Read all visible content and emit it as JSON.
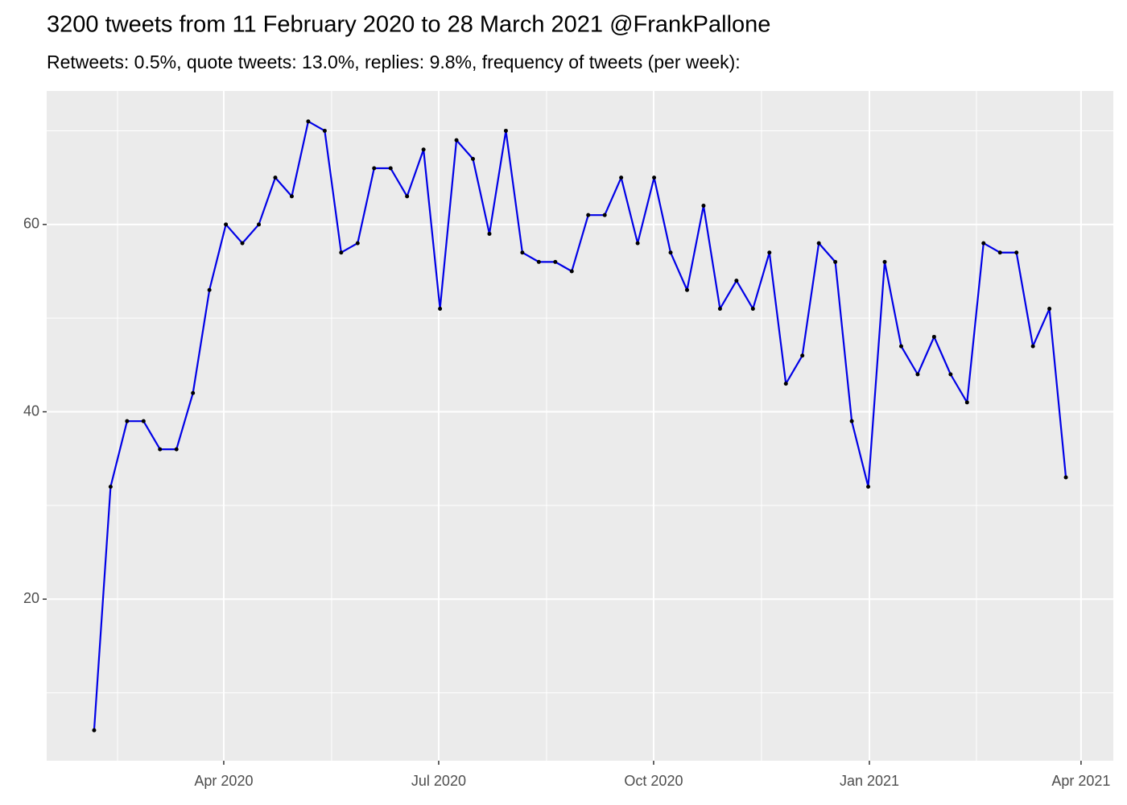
{
  "chart_data": {
    "type": "line",
    "title": "3200 tweets from 11 February 2020 to 28 March 2021 @FrankPallone",
    "subtitle": "Retweets: 0.5%, quote tweets: 13.0%, replies: 9.8%, frequency of tweets (per week):",
    "x": [
      0,
      1,
      2,
      3,
      4,
      5,
      6,
      7,
      8,
      9,
      10,
      11,
      12,
      13,
      14,
      15,
      16,
      17,
      18,
      19,
      20,
      21,
      22,
      23,
      24,
      25,
      26,
      27,
      28,
      29,
      30,
      31,
      32,
      33,
      34,
      35,
      36,
      37,
      38,
      39,
      40,
      41,
      42,
      43,
      44,
      45,
      46,
      47,
      48,
      49,
      50,
      51,
      52,
      53,
      54,
      55,
      56,
      57,
      58,
      59
    ],
    "series": [
      {
        "color": "#0000e6",
        "point_color": "#000000",
        "values": [
          6,
          32,
          39,
          39,
          36,
          36,
          42,
          53,
          60,
          58,
          60,
          65,
          63,
          71,
          70,
          57,
          58,
          66,
          66,
          63,
          68,
          51,
          69,
          67,
          59,
          70,
          57,
          56,
          56,
          55,
          61,
          61,
          65,
          58,
          65,
          57,
          53,
          62,
          51,
          54,
          51,
          57,
          43,
          46,
          58,
          56,
          39,
          32,
          56,
          47,
          44,
          48,
          44,
          41,
          58,
          57,
          57,
          47,
          51,
          33
        ]
      }
    ],
    "xlim": [
      -2.88,
      61.88
    ],
    "xticks": [
      {
        "value": 7.87,
        "label": "Apr 2020"
      },
      {
        "value": 20.92,
        "label": "Jul 2020"
      },
      {
        "value": 33.97,
        "label": "Oct 2020"
      },
      {
        "value": 47.07,
        "label": "Jan 2021"
      },
      {
        "value": 59.92,
        "label": "Apr 2021"
      }
    ],
    "xminorticks": [
      1.42,
      14.42,
      27.47,
      40.52,
      53.57
    ],
    "ylim": [
      2.75,
      74.25
    ],
    "yticks": [
      20,
      40,
      60
    ],
    "yminorticks": [
      10,
      30,
      50,
      70
    ],
    "grid": true
  }
}
